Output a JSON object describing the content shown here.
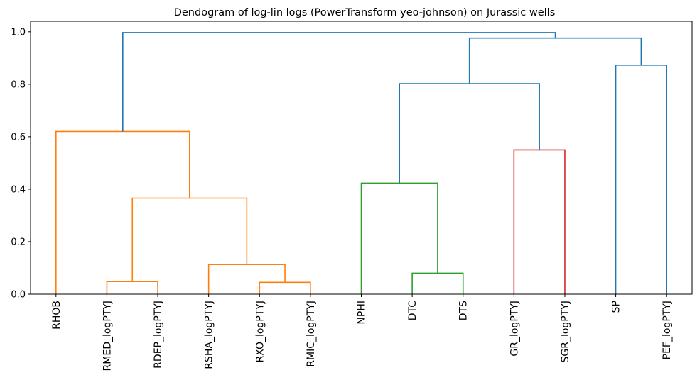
{
  "chart_data": {
    "type": "dendrogram",
    "title": "Dendogram of log-lin logs (PowerTransform yeo-johnson) on Jurassic wells",
    "xlabel": "",
    "ylabel": "",
    "ylim": [
      0,
      1.04
    ],
    "yticks": [
      "0.0",
      "0.2",
      "0.4",
      "0.6",
      "0.8",
      "1.0"
    ],
    "grid": false,
    "leaves": [
      "RHOB",
      "RMED_logPTYJ",
      "RDEP_logPTYJ",
      "RSHA_logPTYJ",
      "RXO_logPTYJ",
      "RMIC_logPTYJ",
      "NPHI",
      "DTC",
      "DTS",
      "GR_logPTYJ",
      "SGR_logPTYJ",
      "SP",
      "PEF_logPTYJ"
    ],
    "colors": {
      "orange": "#ff7f0e",
      "green": "#2ca02c",
      "red": "#d62728",
      "blue": "#1f77b4"
    },
    "links": [
      {
        "left": "RMED_logPTYJ",
        "right": "RDEP_logPTYJ",
        "height": 0.048,
        "color": "orange"
      },
      {
        "left": "RXO_logPTYJ",
        "right": "RMIC_logPTYJ",
        "height": 0.045,
        "color": "orange"
      },
      {
        "left": "RSHA_logPTYJ",
        "right": "RXO_logPTYJ+RMIC_logPTYJ",
        "height": 0.113,
        "color": "orange"
      },
      {
        "left": "RMED_logPTYJ+RDEP_logPTYJ",
        "right": "RSHA_logPTYJ+RXO_logPTYJ+RMIC_logPTYJ",
        "height": 0.366,
        "color": "orange"
      },
      {
        "left": "RHOB",
        "right": "RMED_logPTYJ+RDEP_logPTYJ+RSHA_logPTYJ+RXO_logPTYJ+RMIC_logPTYJ",
        "height": 0.62,
        "color": "orange"
      },
      {
        "left": "DTC",
        "right": "DTS",
        "height": 0.08,
        "color": "green"
      },
      {
        "left": "NPHI",
        "right": "DTC+DTS",
        "height": 0.423,
        "color": "green"
      },
      {
        "left": "GR_logPTYJ",
        "right": "SGR_logPTYJ",
        "height": 0.55,
        "color": "red"
      },
      {
        "left": "NPHI+DTC+DTS",
        "right": "GR_logPTYJ+SGR_logPTYJ",
        "height": 0.802,
        "color": "blue"
      },
      {
        "left": "SP",
        "right": "PEF_logPTYJ",
        "height": 0.873,
        "color": "blue"
      },
      {
        "left": "NPHI+DTC+DTS+GR_logPTYJ+SGR_logPTYJ",
        "right": "SP+PEF_logPTYJ",
        "height": 0.976,
        "color": "blue"
      },
      {
        "left": "RHOB+RMED_logPTYJ+RDEP_logPTYJ+RSHA_logPTYJ+RXO_logPTYJ+RMIC_logPTYJ",
        "right": "NPHI+DTC+DTS+GR_logPTYJ+SGR_logPTYJ+SP+PEF_logPTYJ",
        "height": 0.997,
        "color": "blue"
      }
    ]
  }
}
